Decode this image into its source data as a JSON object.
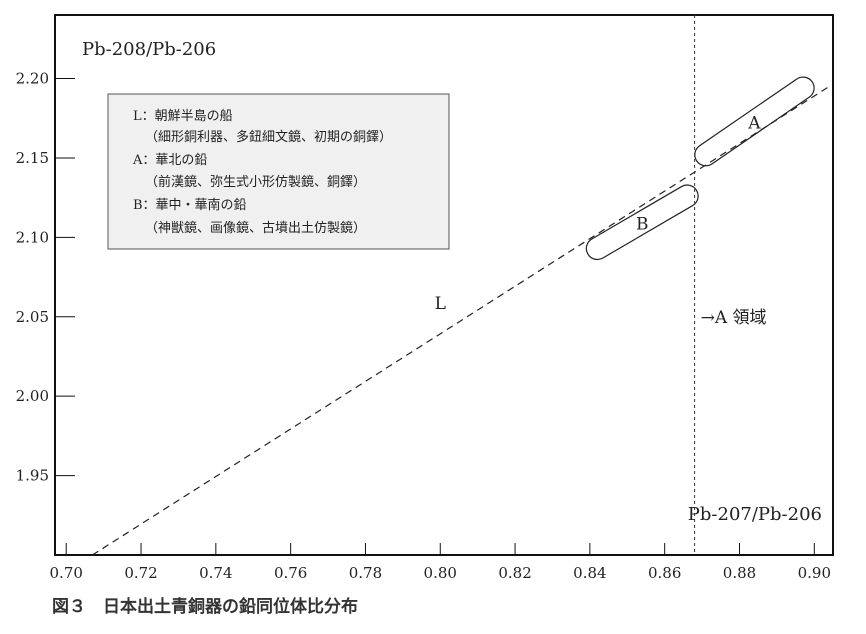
{
  "chart_data": {
    "type": "line",
    "title": "",
    "caption": "図３　日本出土青銅器の鉛同位体比分布",
    "xlabel": "Pb-207/Pb-206",
    "ylabel": "Pb-208/Pb-206",
    "xlim": [
      0.697,
      0.905
    ],
    "ylim": [
      1.9,
      2.24
    ],
    "x_ticks": [
      "0.70",
      "0.72",
      "0.74",
      "0.76",
      "0.78",
      "0.80",
      "0.82",
      "0.84",
      "0.86",
      "0.88",
      "0.90"
    ],
    "y_ticks": [
      "1.95",
      "2.00",
      "2.05",
      "2.10",
      "2.15",
      "2.20"
    ],
    "grid": false,
    "series": [
      {
        "name": "L",
        "style": "dashed",
        "x": [
          0.707,
          0.904
        ],
        "y": [
          1.9,
          2.195
        ]
      }
    ],
    "regions": [
      {
        "name": "A",
        "x": [
          0.871,
          0.897
        ],
        "y": [
          2.152,
          2.194
        ]
      },
      {
        "name": "B",
        "x": [
          0.842,
          0.866
        ],
        "y": [
          2.093,
          2.126
        ]
      }
    ],
    "reference_lines": [
      {
        "x": 0.868,
        "label": "→A 領域"
      }
    ],
    "labels": [
      {
        "text": "L",
        "x": 0.8,
        "y": 2.055
      }
    ],
    "legend": {
      "position": "top-left",
      "lines": [
        "L：朝鮮半島の船",
        "（細形銅利器、多鈕細文鏡、初期の銅鐸）",
        "A：華北の鉛",
        "（前漢鏡、弥生式小形仿製鏡、銅鐸）",
        "B：華中・華南の鉛",
        "（神獣鏡、画像鏡、古墳出土仿製鏡）"
      ]
    }
  }
}
